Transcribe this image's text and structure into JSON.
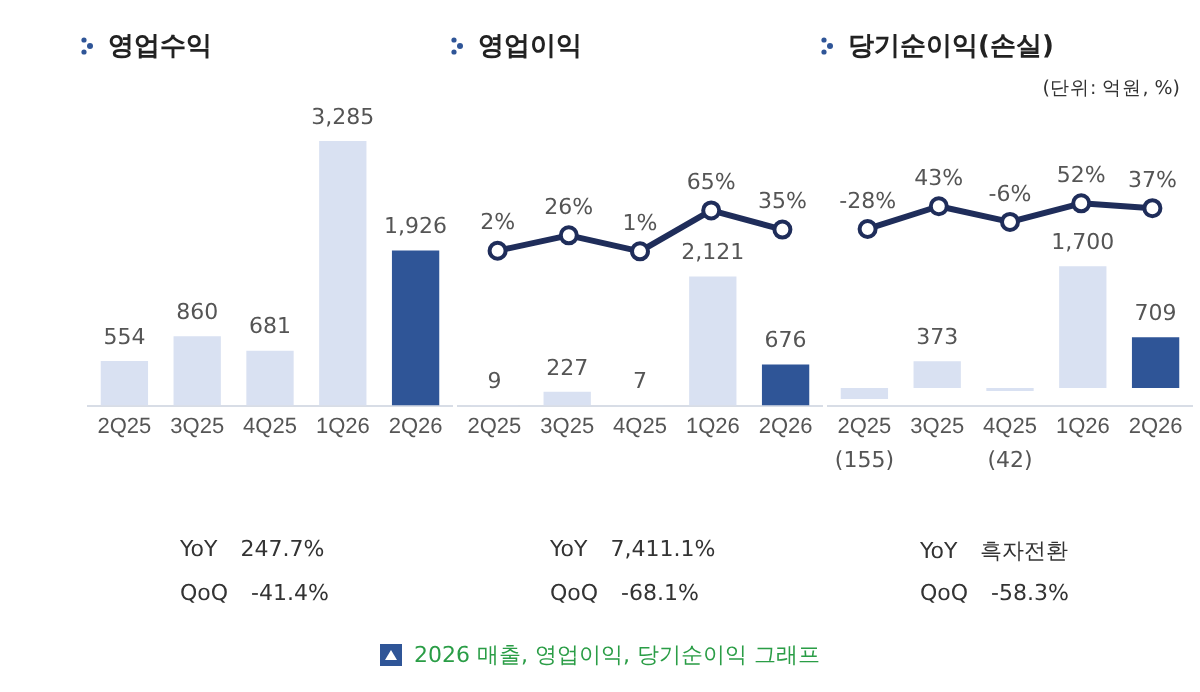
{
  "chart_data": [
    {
      "type": "bar",
      "title": "영업수익",
      "categories": [
        "2Q25",
        "3Q25",
        "4Q25",
        "1Q26",
        "2Q26"
      ],
      "legend": false,
      "grid": false,
      "series": [
        {
          "colors": [
            "#d9e1f2",
            "#d9e1f2",
            "#d9e1f2",
            "#d9e1f2",
            "#2f5597"
          ],
          "values": [
            554,
            860,
            681,
            3285,
            1926
          ],
          "value_labels": [
            "554",
            "860",
            "681",
            "3,285",
            "1,926"
          ]
        }
      ],
      "annotations": [
        "YoY 247.7%",
        "QoQ -41.4%"
      ]
    },
    {
      "type": "line",
      "title": "영업이익",
      "categories": [
        null,
        null,
        null,
        null,
        null
      ],
      "tick_labels": false,
      "legend": false,
      "grid": false,
      "series": [
        {
          "color": "#1f2d5a",
          "marker": "circle",
          "values": [
            2,
            26,
            1,
            65,
            35
          ],
          "value_labels": [
            "2%",
            "26%",
            "1%",
            "65%",
            "35%"
          ]
        }
      ]
    },
    {
      "type": "bar",
      "categories": [
        "2Q25",
        "3Q25",
        "4Q25",
        "1Q26",
        "2Q26"
      ],
      "legend": false,
      "grid": false,
      "series": [
        {
          "colors": [
            "#d9e1f2",
            "#d9e1f2",
            "#d9e1f2",
            "#d9e1f2",
            "#2f5597"
          ],
          "values": [
            9,
            227,
            7,
            2121,
            676
          ],
          "value_labels": [
            "9",
            "227",
            "7",
            "2,121",
            "676"
          ]
        }
      ],
      "annotations": [
        "YoY 7,411.1%",
        "QoQ -68.1%",
        "2026 매출, 영업이익, 당기순이익 그래프"
      ]
    },
    {
      "type": "line",
      "title": "당기순이익(손실)",
      "categories": [
        null,
        null,
        null,
        null,
        null
      ],
      "tick_labels": false,
      "legend": false,
      "grid": false,
      "series": [
        {
          "color": "#1f2d5a",
          "marker": "circle",
          "values": [
            -28,
            43,
            -6,
            52,
            37
          ],
          "value_labels": [
            "-28%",
            "43%",
            "-6%",
            "52%",
            "37%"
          ]
        }
      ]
    },
    {
      "type": "bar",
      "categories": [
        "2Q25",
        "3Q25",
        "4Q25",
        "1Q26",
        "2Q26"
      ],
      "legend": false,
      "grid": false,
      "series": [
        {
          "colors": [
            "#d9e1f2",
            "#d9e1f2",
            "#d9e1f2",
            "#d9e1f2",
            "#2f5597"
          ],
          "values": [
            -155,
            373,
            -42,
            1700,
            709
          ],
          "value_labels": [
            "(155)",
            "373",
            "(42)",
            "1,700",
            "709"
          ]
        }
      ],
      "annotations": [
        "YoY 흑자전환",
        "QoQ -58.3%",
        "(단위: 억원, %)"
      ]
    }
  ]
}
